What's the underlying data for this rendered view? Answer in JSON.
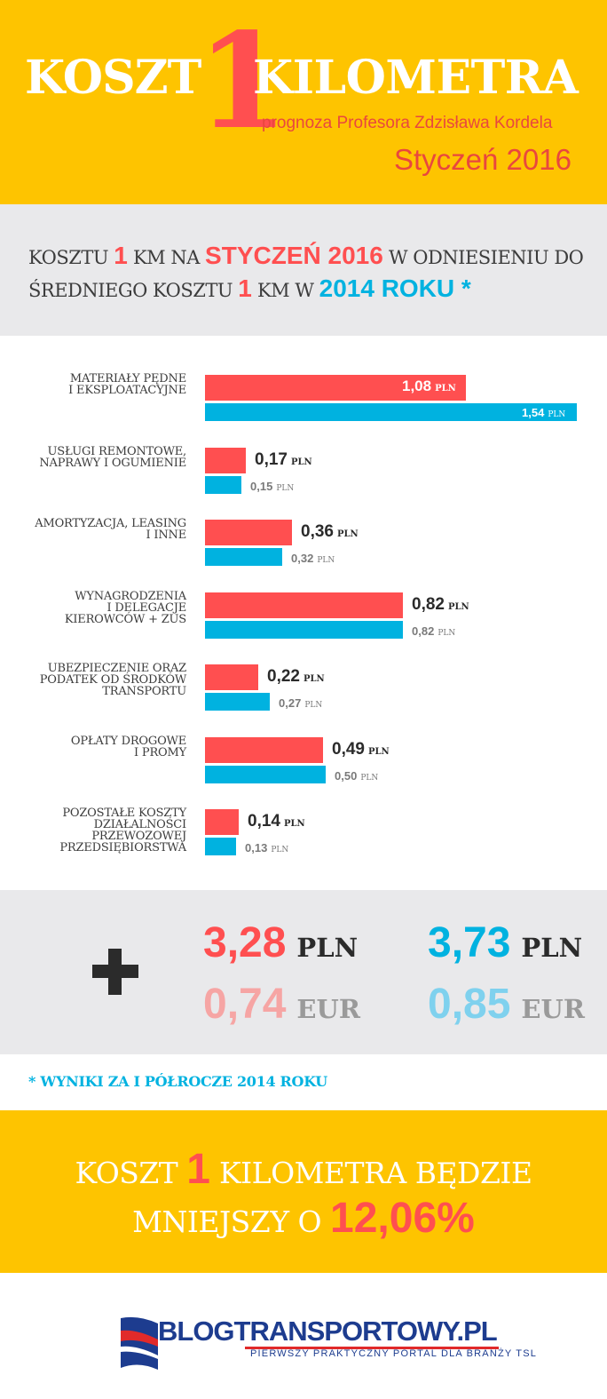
{
  "header": {
    "title_left": "KOSZT",
    "title_number": "1",
    "title_right": "KILOMETRA",
    "subtitle": "prognoza Profesora Zdzisława Kordela",
    "date": "Styczeń 2016"
  },
  "intro": {
    "line1_a": "KOSZTU ",
    "line1_num": "1",
    "line1_b": " KM NA ",
    "line1_hl": "STYCZEŃ 2016",
    "line1_c": " W ODNIESIENIU DO",
    "line2_a": "ŚREDNIEGO KOSZTU ",
    "line2_num": "1",
    "line2_b": " KM W ",
    "line2_hl": "2014 ROKU *"
  },
  "chart_data": {
    "type": "bar",
    "orientation": "horizontal",
    "unit": "PLN",
    "series": [
      {
        "name": "Styczeń 2016",
        "color": "#ff4f50"
      },
      {
        "name": "2014",
        "color": "#00b2e0"
      }
    ],
    "categories": [
      {
        "label": "MATERIAŁY PĘDNE\nI EKSPLOATACYJNE",
        "v2016": "1,08",
        "v2014": "1,54",
        "n2016": 1.08,
        "n2014": 1.54
      },
      {
        "label": "USŁUGI REMONTOWE,\nNAPRAWY I OGUMIENIE",
        "v2016": "0,17",
        "v2014": "0,15",
        "n2016": 0.17,
        "n2014": 0.15
      },
      {
        "label": "AMORTYZACJA, LEASING\nI INNE",
        "v2016": "0,36",
        "v2014": "0,32",
        "n2016": 0.36,
        "n2014": 0.32
      },
      {
        "label": "WYNAGRODZENIA\nI DELEGACJE\nKIEROWCÓW + ZUS",
        "v2016": "0,82",
        "v2014": "0,82",
        "n2016": 0.82,
        "n2014": 0.82
      },
      {
        "label": "UBEZPIECZENIE ORAZ\nPODATEK OD ŚRODKÓW\nTRANSPORTU",
        "v2016": "0,22",
        "v2014": "0,27",
        "n2016": 0.22,
        "n2014": 0.27
      },
      {
        "label": "OPŁATY DROGOWE\nI PROMY",
        "v2016": "0,49",
        "v2014": "0,50",
        "n2016": 0.49,
        "n2014": 0.5
      },
      {
        "label": "POZOSTAŁE KOSZTY\nDZIAŁALNOŚCI\nPRZEWOZOWEJ\nPRZEDSIĘBIORSTWA",
        "v2016": "0,14",
        "v2014": "0,13",
        "n2016": 0.14,
        "n2014": 0.13
      }
    ],
    "xlim": [
      0,
      1.54
    ]
  },
  "totals": {
    "red_pln_value": "3,28",
    "red_pln_unit": "PLN",
    "red_eur_value": "0,74",
    "red_eur_unit": "EUR",
    "blue_pln_value": "3,73",
    "blue_pln_unit": "PLN",
    "blue_eur_value": "0,85",
    "blue_eur_unit": "EUR"
  },
  "footnote": "* WYNIKI ZA I PÓŁROCZE 2014 ROKU",
  "conclusion": {
    "line1_a": "KOSZT ",
    "line1_num": "1",
    "line1_b": " KILOMETRA BĘDZIE",
    "line2_a": "MNIEJSZY O ",
    "line2_pct": "12,06%"
  },
  "logo": {
    "name": "BLOGTRANSPORTOWY.PL",
    "tagline": "PIERWSZY PRAKTYCZNY PORTAL DLA BRANŻY TSL"
  },
  "colors": {
    "yellow": "#fec400",
    "red": "#ff4f50",
    "blue": "#00b2e0",
    "gray_band": "#e9e9eb"
  }
}
